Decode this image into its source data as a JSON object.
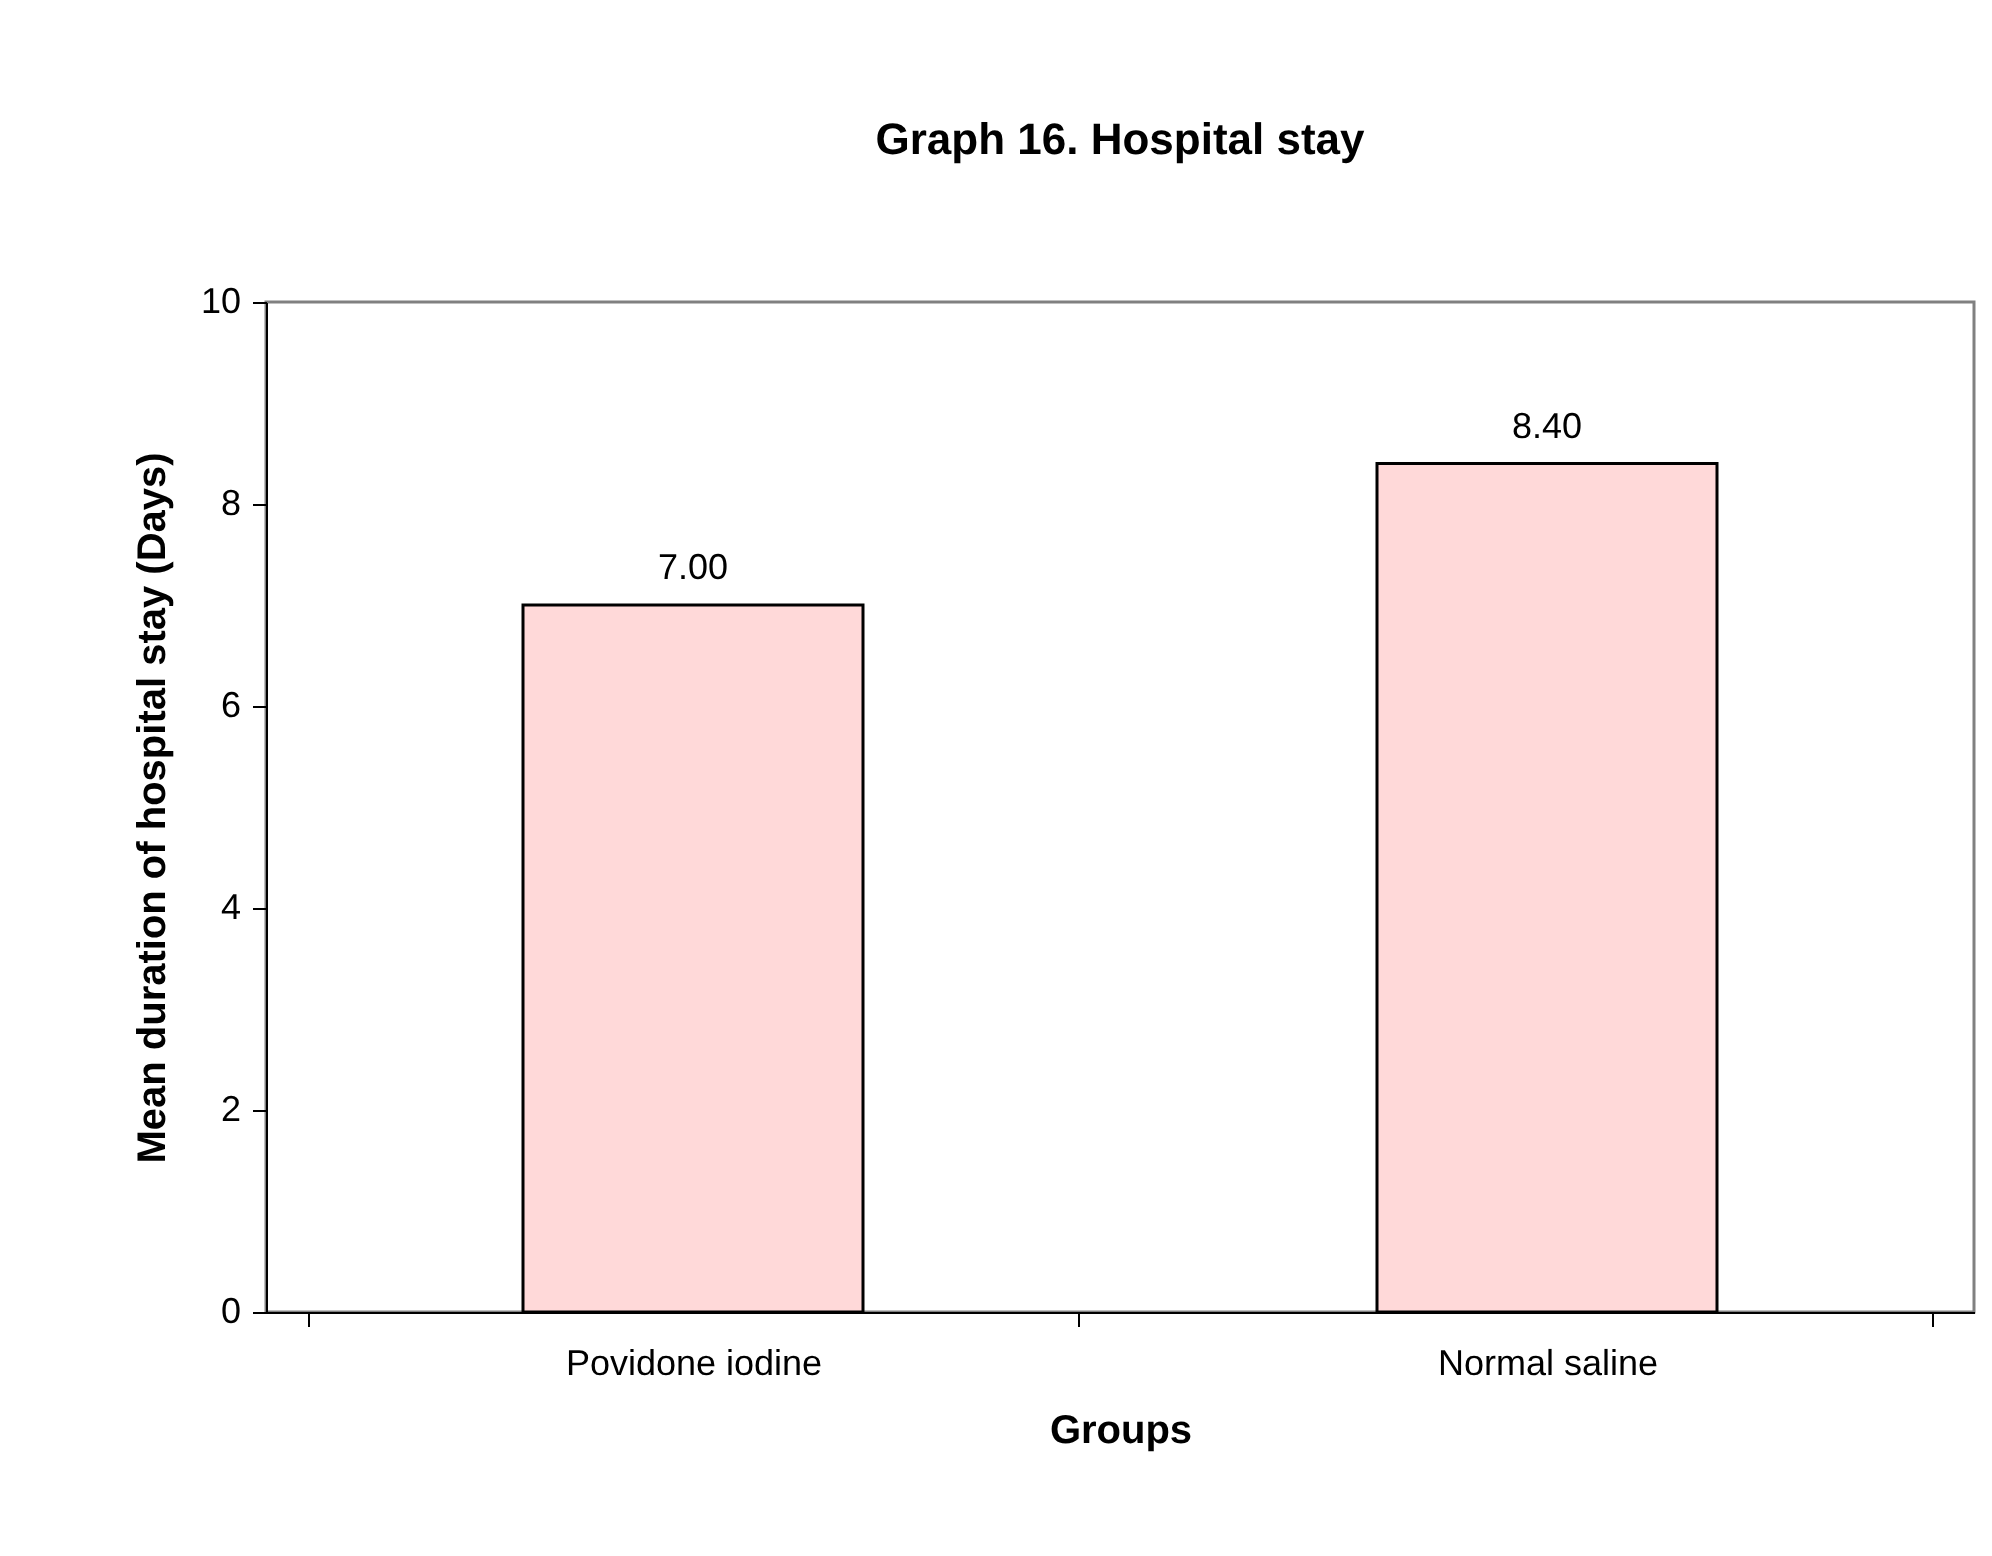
{
  "chart_data": {
    "type": "bar",
    "title": "Graph 16. Hospital stay",
    "xlabel": "Groups",
    "ylabel": "Mean duration of hospital stay (Days)",
    "categories": [
      "Povidone iodine",
      "Normal saline"
    ],
    "values": [
      7.0,
      8.4
    ],
    "value_labels": [
      "7.00",
      "8.40"
    ],
    "color": "#ffd9d9",
    "ylim": [
      0,
      10
    ],
    "yticks": [
      0,
      2,
      4,
      6,
      8,
      10
    ],
    "grid": false
  }
}
